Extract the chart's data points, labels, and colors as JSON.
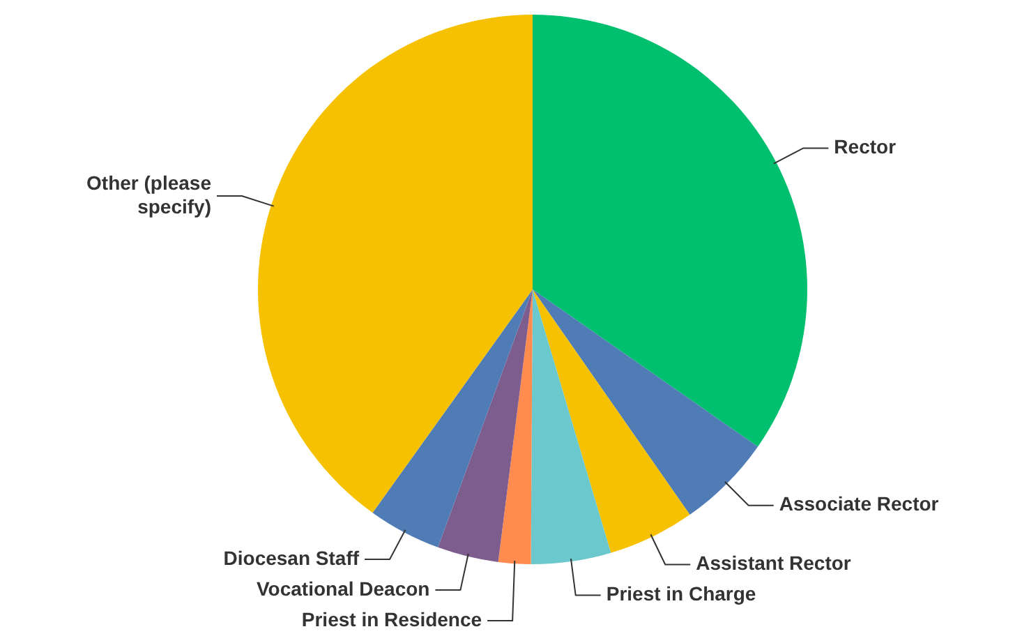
{
  "chart_data": {
    "type": "pie",
    "categories": [
      "Rector",
      "Associate Rector",
      "Assistant Rector",
      "Priest in Charge",
      "Priest in Residence",
      "Vocational Deacon",
      "Diocesan Staff",
      "Other (please specify)"
    ],
    "values": [
      34.7,
      5.6,
      5.1,
      4.7,
      1.9,
      3.6,
      4.3,
      40.1
    ],
    "colors": [
      "#00bf6f",
      "#507cb6",
      "#f6c100",
      "#6bc8cd",
      "#ff8b4f",
      "#7d5c8e",
      "#507cb6",
      "#f6c100"
    ],
    "legend": false
  }
}
